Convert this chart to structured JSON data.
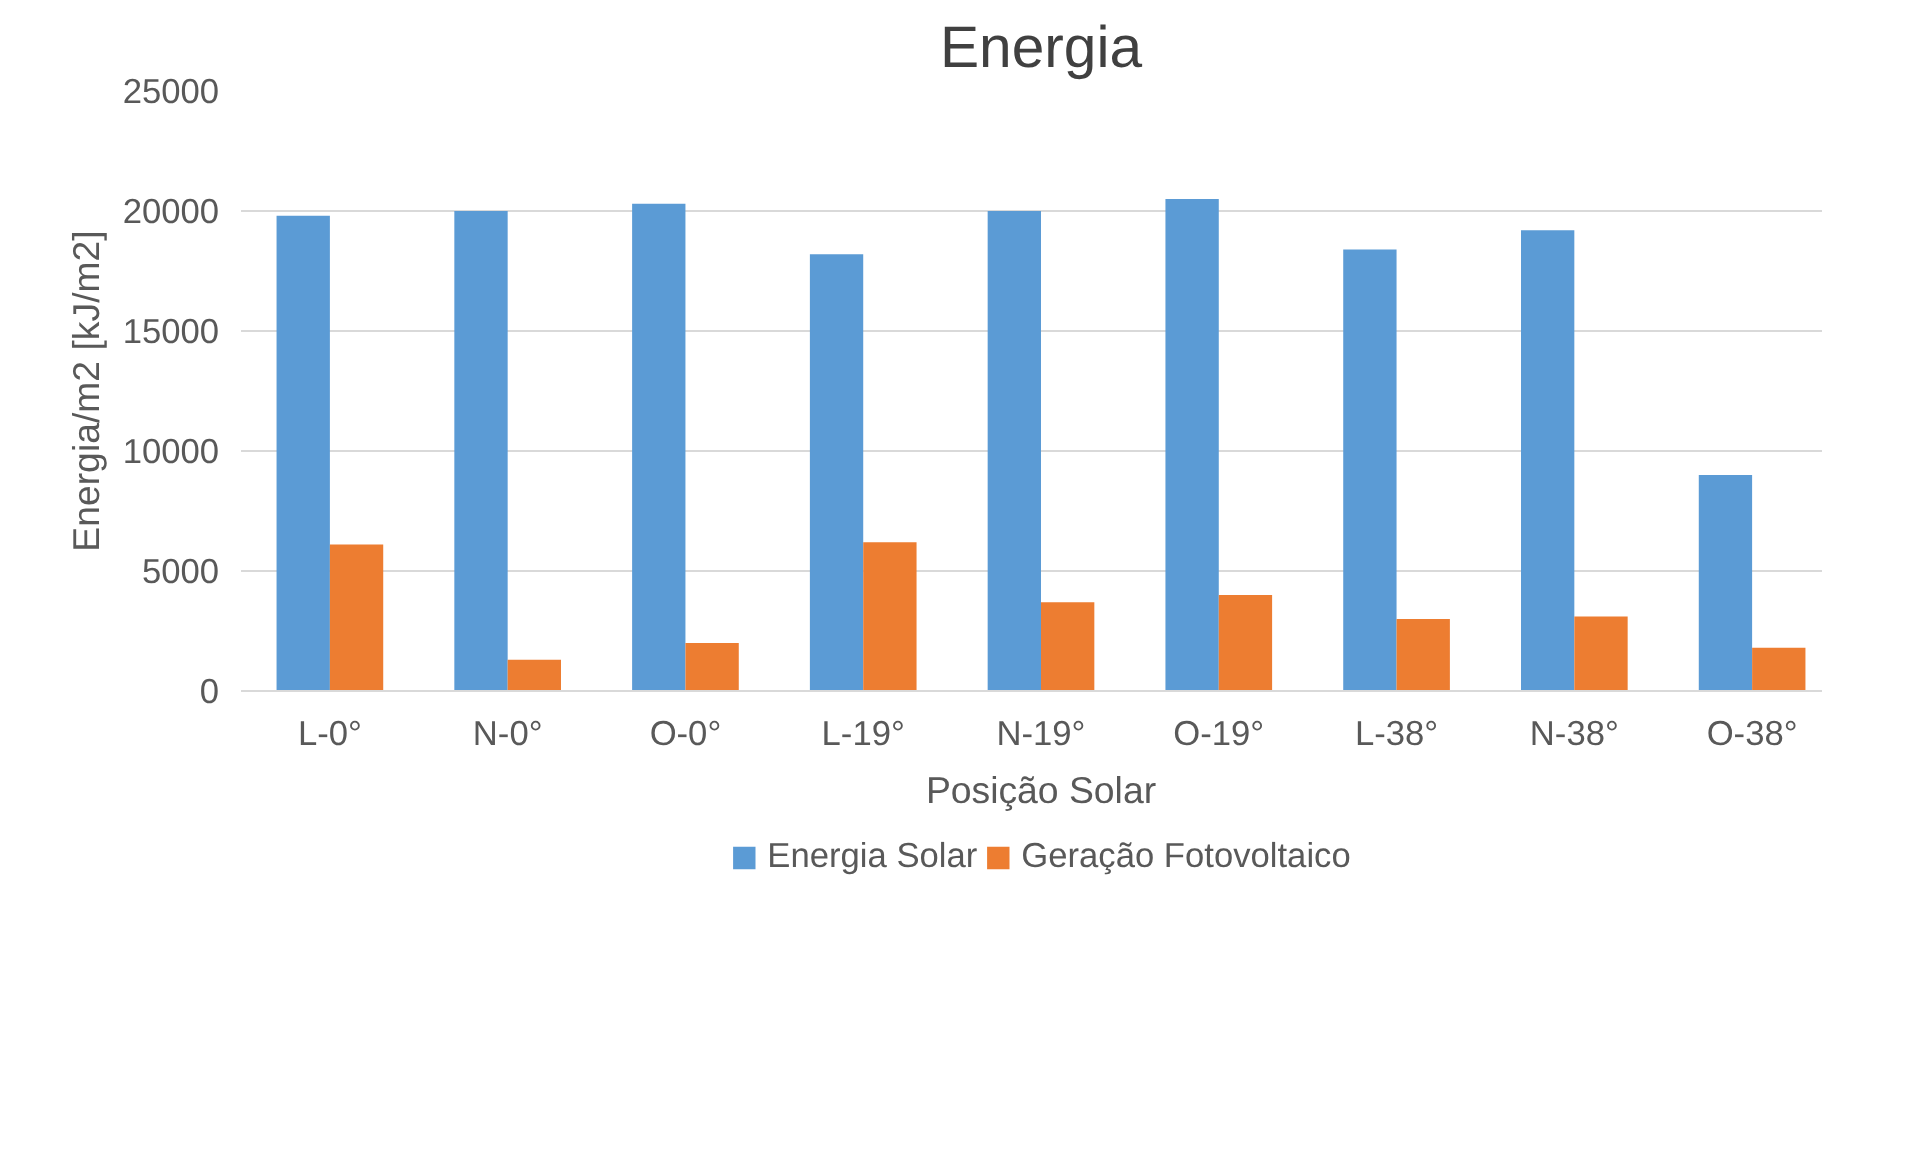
{
  "chart_data": {
    "type": "bar",
    "title": "Energia",
    "xlabel": "Posição Solar",
    "ylabel": "Energia/m2 [kJ/m2]",
    "categories": [
      "L-0°",
      "N-0°",
      "O-0°",
      "L-19°",
      "N-19°",
      "O-19°",
      "L-38°",
      "N-38°",
      "O-38°"
    ],
    "series": [
      {
        "name": "Energia Solar",
        "color": "#5b9bd5",
        "values": [
          19800,
          20000,
          20300,
          18200,
          20000,
          20500,
          18400,
          19200,
          9000
        ]
      },
      {
        "name": "Geração Fotovoltaico",
        "color": "#ed7d31",
        "values": [
          6100,
          1300,
          2000,
          6200,
          3700,
          4000,
          3000,
          3100,
          1800
        ]
      }
    ],
    "ylim": [
      0,
      25000
    ],
    "yticks": [
      0,
      5000,
      10000,
      15000,
      20000,
      25000
    ],
    "grid": "y",
    "legend": "bottom"
  }
}
